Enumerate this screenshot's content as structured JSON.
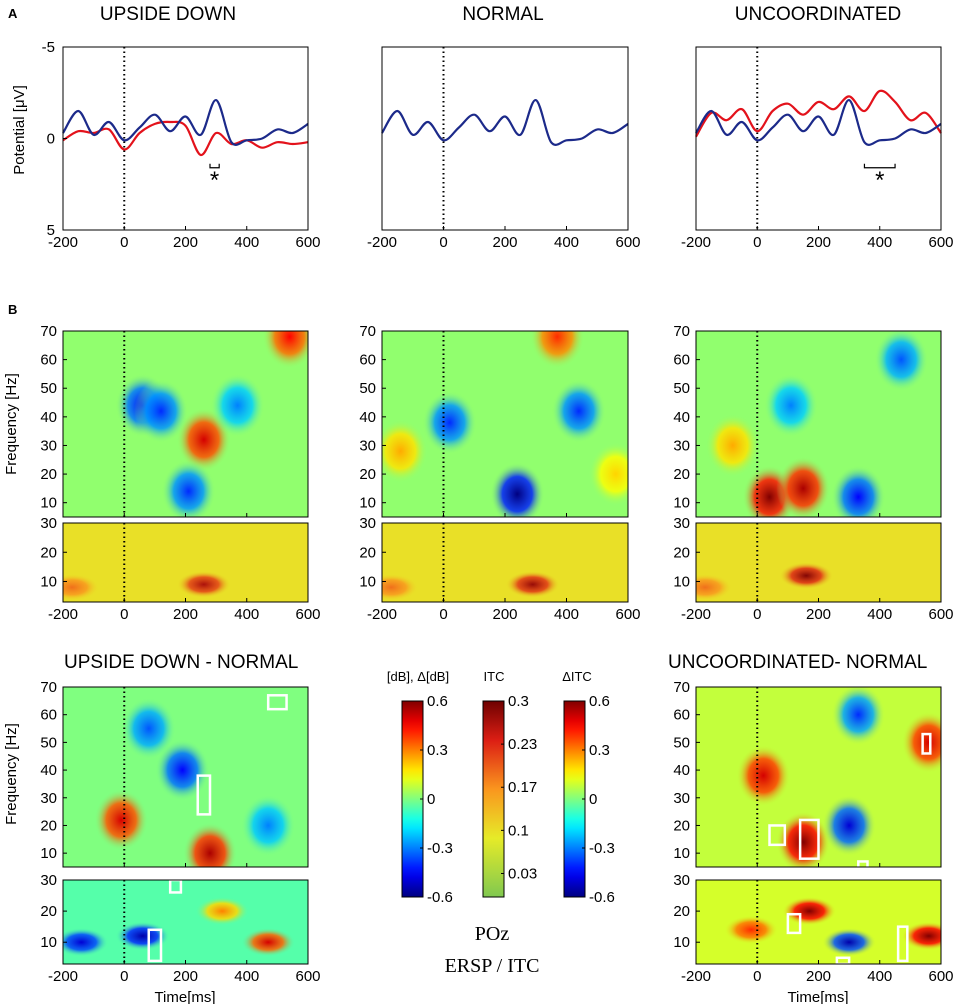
{
  "figure": {
    "panel_a_label": "A",
    "panel_b_label": "B",
    "top_titles": [
      "UPSIDE DOWN",
      "NORMAL",
      "UNCOORDINATED"
    ],
    "diff_titles": [
      "UPSIDE DOWN - NORMAL",
      "UNCOORDINATED- NORMAL"
    ],
    "erp_ylabel": "Potential [μV]",
    "tf_ylabel": "Frequency [Hz]",
    "xlabel": "Time[ms]",
    "significance_marker": "*",
    "channel_label": "POz",
    "measure_label": "ERSP  /  ITC",
    "colorbar_titles": [
      "[dB], Δ[dB]",
      "ITC",
      "ΔITC"
    ],
    "colorbar_ticks": [
      [
        "0.6",
        "0.3",
        "0",
        "-0.3",
        "-0.6"
      ],
      [
        "0.3",
        "0.23",
        "0.17",
        "0.1",
        "0.03"
      ],
      [
        "0.6",
        "0.3",
        "0",
        "-0.3",
        "-0.6"
      ]
    ],
    "colors": {
      "blue": "#1c2a8a",
      "red": "#e3121b",
      "highlight": "#ffffff"
    }
  },
  "chart_data": [
    {
      "type": "line",
      "title": "UPSIDE DOWN",
      "xlabel": "",
      "ylabel": "Potential [μV]",
      "xlim": [
        -200,
        600
      ],
      "ylim": [
        5,
        -5
      ],
      "x_ticks": [
        "-200",
        "0",
        "200",
        "400",
        "600"
      ],
      "y_ticks": [
        "-5",
        "0",
        "5"
      ],
      "x": [
        -200,
        -150,
        -100,
        -50,
        0,
        50,
        100,
        150,
        200,
        250,
        300,
        350,
        400,
        450,
        500,
        550,
        600
      ],
      "series": [
        {
          "name": "upside down",
          "color": "#e3121b",
          "values": [
            0.1,
            -0.4,
            -0.3,
            -0.5,
            0.6,
            -0.3,
            -0.8,
            -0.9,
            -0.7,
            0.9,
            -0.3,
            0.3,
            0.1,
            0.5,
            0.2,
            0.3,
            0.2
          ]
        },
        {
          "name": "normal",
          "color": "#1c2a8a",
          "values": [
            -0.3,
            -1.5,
            -0.2,
            -0.9,
            0.1,
            -0.6,
            -1.3,
            -0.4,
            -1.2,
            -0.2,
            -2.1,
            0.2,
            0.1,
            0.0,
            -0.5,
            -0.3,
            -0.8
          ]
        }
      ],
      "significance": {
        "x_from": 280,
        "x_to": 310,
        "label": "*"
      }
    },
    {
      "type": "line",
      "title": "NORMAL",
      "xlabel": "",
      "ylabel": "",
      "xlim": [
        -200,
        600
      ],
      "ylim": [
        5,
        -5
      ],
      "x_ticks": [
        "-200",
        "0",
        "200",
        "400",
        "600"
      ],
      "x": [
        -200,
        -150,
        -100,
        -50,
        0,
        50,
        100,
        150,
        200,
        250,
        300,
        350,
        400,
        450,
        500,
        550,
        600
      ],
      "series": [
        {
          "name": "normal",
          "color": "#1c2a8a",
          "values": [
            -0.3,
            -1.5,
            -0.2,
            -0.9,
            0.1,
            -0.6,
            -1.3,
            -0.4,
            -1.2,
            -0.2,
            -2.1,
            0.2,
            0.1,
            0.0,
            -0.5,
            -0.3,
            -0.8
          ]
        }
      ]
    },
    {
      "type": "line",
      "title": "UNCOORDINATED",
      "xlabel": "",
      "ylabel": "",
      "xlim": [
        -200,
        600
      ],
      "ylim": [
        5,
        -5
      ],
      "x_ticks": [
        "-200",
        "0",
        "200",
        "400",
        "600"
      ],
      "x": [
        -200,
        -150,
        -100,
        -50,
        0,
        50,
        100,
        150,
        200,
        250,
        300,
        350,
        400,
        450,
        500,
        550,
        600
      ],
      "series": [
        {
          "name": "uncoordinated",
          "color": "#e3121b",
          "values": [
            -0.1,
            -1.4,
            -1.0,
            -1.6,
            -0.4,
            -1.5,
            -1.9,
            -1.3,
            -2.0,
            -1.6,
            -2.3,
            -1.5,
            -2.6,
            -2.0,
            -1.0,
            -1.4,
            -0.3
          ]
        },
        {
          "name": "normal",
          "color": "#1c2a8a",
          "values": [
            -0.3,
            -1.5,
            -0.2,
            -0.9,
            0.1,
            -0.6,
            -1.3,
            -0.4,
            -1.2,
            -0.2,
            -2.1,
            0.2,
            0.1,
            0.0,
            -0.5,
            -0.3,
            -0.8
          ]
        }
      ],
      "significance": {
        "x_from": 350,
        "x_to": 450,
        "label": "*"
      }
    },
    {
      "type": "heatmap",
      "title": "ERSP UPSIDE DOWN",
      "xlim": [
        -200,
        600
      ],
      "ylim": [
        5,
        70
      ],
      "clim": [
        -0.6,
        0.6
      ],
      "x_ticks": [
        "-200",
        "0",
        "200",
        "400",
        "600"
      ],
      "y_ticks": [
        "10",
        "20",
        "30",
        "40",
        "50",
        "60",
        "70"
      ],
      "notable": [
        {
          "t": 260,
          "f": 32,
          "value": 0.5
        },
        {
          "t": 540,
          "f": 68,
          "value": 0.45
        },
        {
          "t": 60,
          "f": 44,
          "value": -0.45
        },
        {
          "t": 120,
          "f": 42,
          "value": -0.4
        },
        {
          "t": 210,
          "f": 14,
          "value": -0.4
        },
        {
          "t": 370,
          "f": 44,
          "value": -0.3
        }
      ]
    },
    {
      "type": "heatmap",
      "title": "ERSP NORMAL",
      "xlim": [
        -200,
        600
      ],
      "ylim": [
        5,
        70
      ],
      "clim": [
        -0.6,
        0.6
      ],
      "x_ticks": [
        "-200",
        "0",
        "200",
        "400",
        "600"
      ],
      "y_ticks": [
        "10",
        "20",
        "30",
        "40",
        "50",
        "60",
        "70"
      ],
      "notable": [
        {
          "t": 240,
          "f": 13,
          "value": -0.6
        },
        {
          "t": 20,
          "f": 38,
          "value": -0.4
        },
        {
          "t": 440,
          "f": 42,
          "value": -0.4
        },
        {
          "t": 370,
          "f": 68,
          "value": 0.4
        },
        {
          "t": -140,
          "f": 28,
          "value": 0.25
        },
        {
          "t": 560,
          "f": 20,
          "value": 0.2
        }
      ]
    },
    {
      "type": "heatmap",
      "title": "ERSP UNCOORDINATED",
      "xlim": [
        -200,
        600
      ],
      "ylim": [
        5,
        70
      ],
      "clim": [
        -0.6,
        0.6
      ],
      "x_ticks": [
        "-200",
        "0",
        "200",
        "400",
        "600"
      ],
      "y_ticks": [
        "10",
        "20",
        "30",
        "40",
        "50",
        "60",
        "70"
      ],
      "notable": [
        {
          "t": 40,
          "f": 12,
          "value": 0.6
        },
        {
          "t": 150,
          "f": 15,
          "value": 0.55
        },
        {
          "t": 330,
          "f": 12,
          "value": -0.45
        },
        {
          "t": 110,
          "f": 44,
          "value": -0.3
        },
        {
          "t": 470,
          "f": 60,
          "value": -0.35
        },
        {
          "t": -80,
          "f": 30,
          "value": 0.25
        }
      ]
    },
    {
      "type": "heatmap",
      "title": "ITC UPSIDE DOWN",
      "xlim": [
        -200,
        600
      ],
      "ylim": [
        3,
        30
      ],
      "clim": [
        0.03,
        0.3
      ],
      "y_ticks": [
        "10",
        "20",
        "30"
      ],
      "notable": [
        {
          "t": 260,
          "f": 9,
          "value": 0.27
        },
        {
          "t": -170,
          "f": 8,
          "value": 0.2
        }
      ]
    },
    {
      "type": "heatmap",
      "title": "ITC NORMAL",
      "xlim": [
        -200,
        600
      ],
      "ylim": [
        3,
        30
      ],
      "clim": [
        0.03,
        0.3
      ],
      "y_ticks": [
        "10",
        "20",
        "30"
      ],
      "notable": [
        {
          "t": 290,
          "f": 9,
          "value": 0.28
        },
        {
          "t": -170,
          "f": 8,
          "value": 0.2
        }
      ]
    },
    {
      "type": "heatmap",
      "title": "ITC UNCOORDINATED",
      "xlim": [
        -200,
        600
      ],
      "ylim": [
        3,
        30
      ],
      "clim": [
        0.03,
        0.3
      ],
      "y_ticks": [
        "10",
        "20",
        "30"
      ],
      "notable": [
        {
          "t": 160,
          "f": 12,
          "value": 0.29
        },
        {
          "t": -170,
          "f": 8,
          "value": 0.2
        }
      ]
    },
    {
      "type": "heatmap",
      "title": "UPSIDE DOWN - NORMAL (ΔERSP)",
      "xlim": [
        -200,
        600
      ],
      "ylim": [
        5,
        70
      ],
      "clim": [
        -0.6,
        0.6
      ],
      "y_ticks": [
        "10",
        "20",
        "30",
        "40",
        "50",
        "60",
        "70"
      ],
      "notable": [
        {
          "t": 280,
          "f": 10,
          "value": 0.55
        },
        {
          "t": -10,
          "f": 22,
          "value": 0.5
        },
        {
          "t": 190,
          "f": 40,
          "value": -0.45
        },
        {
          "t": 80,
          "f": 55,
          "value": -0.35
        },
        {
          "t": 470,
          "f": 20,
          "value": -0.3
        }
      ],
      "significant_clusters": [
        {
          "t_from": 470,
          "t_to": 530,
          "f_from": 62,
          "f_to": 67
        },
        {
          "t_from": 240,
          "t_to": 280,
          "f_from": 24,
          "f_to": 38
        }
      ]
    },
    {
      "type": "heatmap",
      "title": "UPSIDE DOWN - NORMAL (ΔITC)",
      "xlim": [
        -200,
        600
      ],
      "ylim": [
        3,
        30
      ],
      "clim": [
        -0.6,
        0.6
      ],
      "x_ticks": [
        "-200",
        "0",
        "200",
        "400",
        "600"
      ],
      "y_ticks": [
        "10",
        "20",
        "30"
      ],
      "notable": [
        {
          "t": 60,
          "f": 12,
          "value": -0.55
        },
        {
          "t": -140,
          "f": 10,
          "value": -0.5
        },
        {
          "t": 470,
          "f": 10,
          "value": 0.5
        },
        {
          "t": 320,
          "f": 20,
          "value": 0.3
        }
      ],
      "significant_clusters": [
        {
          "t_from": 80,
          "t_to": 120,
          "f_from": 4,
          "f_to": 14
        },
        {
          "t_from": 150,
          "t_to": 185,
          "f_from": 26,
          "f_to": 30
        }
      ]
    },
    {
      "type": "heatmap",
      "title": "UNCOORDINATED- NORMAL (ΔERSP)",
      "xlim": [
        -200,
        600
      ],
      "ylim": [
        5,
        70
      ],
      "clim": [
        -0.6,
        0.6
      ],
      "y_ticks": [
        "10",
        "20",
        "30",
        "40",
        "50",
        "60",
        "70"
      ],
      "notable": [
        {
          "t": 150,
          "f": 14,
          "value": 0.6
        },
        {
          "t": 20,
          "f": 38,
          "value": 0.5
        },
        {
          "t": 560,
          "f": 50,
          "value": 0.5
        },
        {
          "t": 300,
          "f": 20,
          "value": -0.5
        },
        {
          "t": 330,
          "f": 60,
          "value": -0.4
        }
      ],
      "significant_clusters": [
        {
          "t_from": 40,
          "t_to": 90,
          "f_from": 13,
          "f_to": 20
        },
        {
          "t_from": 140,
          "t_to": 200,
          "f_from": 8,
          "f_to": 22
        },
        {
          "t_from": 330,
          "t_to": 360,
          "f_from": 4,
          "f_to": 7
        },
        {
          "t_from": 540,
          "t_to": 565,
          "f_from": 46,
          "f_to": 53
        }
      ]
    },
    {
      "type": "heatmap",
      "title": "UNCOORDINATED- NORMAL (ΔITC)",
      "xlim": [
        -200,
        600
      ],
      "ylim": [
        3,
        30
      ],
      "clim": [
        -0.6,
        0.6
      ],
      "x_ticks": [
        "-200",
        "0",
        "200",
        "400",
        "600"
      ],
      "y_ticks": [
        "10",
        "20",
        "30"
      ],
      "notable": [
        {
          "t": 170,
          "f": 20,
          "value": 0.6
        },
        {
          "t": 560,
          "f": 12,
          "value": 0.6
        },
        {
          "t": 300,
          "f": 10,
          "value": -0.55
        },
        {
          "t": -20,
          "f": 14,
          "value": 0.4
        }
      ],
      "significant_clusters": [
        {
          "t_from": 100,
          "t_to": 140,
          "f_from": 13,
          "f_to": 19
        },
        {
          "t_from": 260,
          "t_to": 300,
          "f_from": 3,
          "f_to": 5
        },
        {
          "t_from": 460,
          "t_to": 490,
          "f_from": 4,
          "f_to": 15
        }
      ]
    }
  ]
}
